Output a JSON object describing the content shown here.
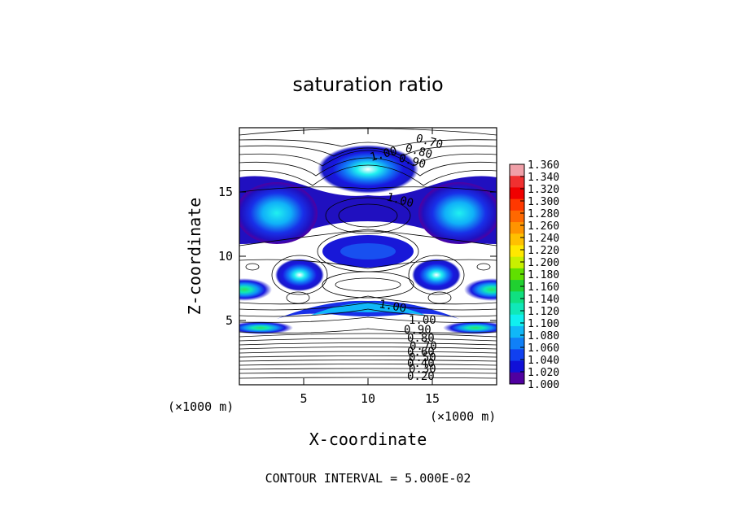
{
  "chart_data": {
    "type": "heatmap",
    "title": "saturation ratio",
    "xlabel": "X-coordinate",
    "ylabel": "Z-coordinate",
    "x_unit_label": "(×1000 m)",
    "z_unit_label": "(×1000 m)",
    "xlim": [
      0,
      20
    ],
    "ylim": [
      0,
      20
    ],
    "x_ticks": [
      5,
      10,
      15
    ],
    "y_ticks": [
      5,
      10,
      15
    ],
    "footer": "CONTOUR INTERVAL = 5.000E-02",
    "colorbar": {
      "min": 1.0,
      "max": 1.36,
      "labels": [
        "1.360",
        "1.340",
        "1.320",
        "1.300",
        "1.280",
        "1.260",
        "1.240",
        "1.220",
        "1.200",
        "1.180",
        "1.160",
        "1.140",
        "1.120",
        "1.100",
        "1.080",
        "1.060",
        "1.040",
        "1.020",
        "1.000"
      ],
      "colors": [
        "#f0a0a8",
        "#f03030",
        "#f00000",
        "#ff3800",
        "#ff6800",
        "#ff9400",
        "#ffc000",
        "#ffe800",
        "#c8f000",
        "#60e000",
        "#20d030",
        "#10e080",
        "#10e8b8",
        "#10f0f0",
        "#10b8f8",
        "#1080f8",
        "#1040f0",
        "#1010d8",
        "#5000a0"
      ]
    },
    "contour_labels_top": [
      "0.70",
      "0.80",
      "0.90",
      "1.00"
    ],
    "contour_label_mid": "1.00",
    "contour_label_low": "1.00",
    "contour_labels_right": [
      "1.00",
      "0.90",
      "0.80",
      "0.70",
      "0.60",
      "0.50",
      "0.40",
      "0.30",
      "0.20"
    ]
  }
}
